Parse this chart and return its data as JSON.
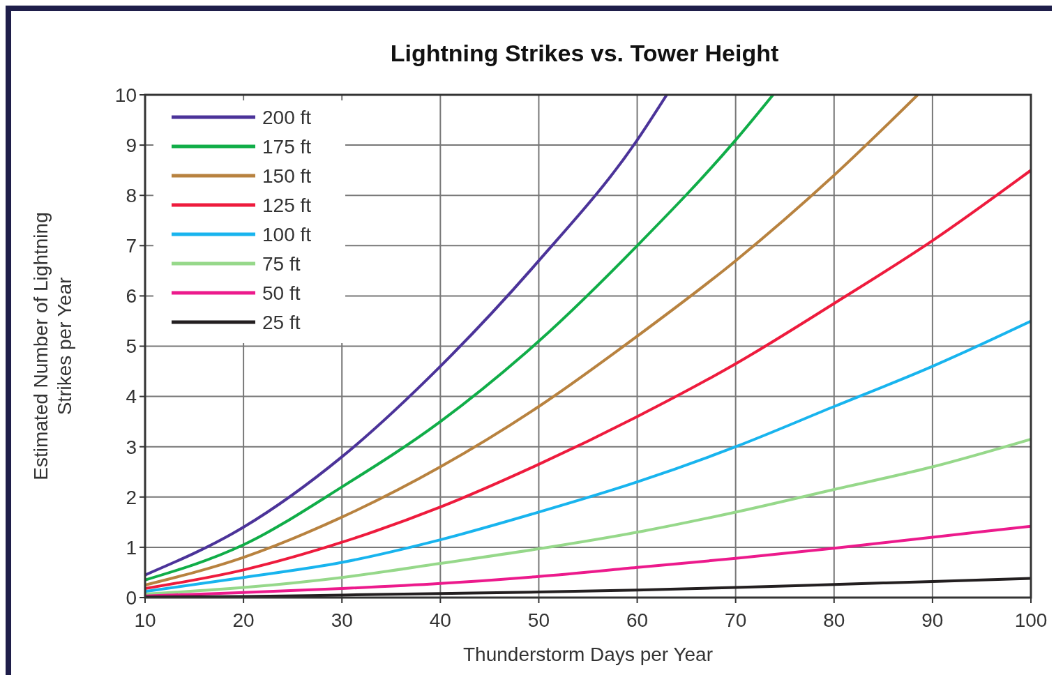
{
  "chart_data": {
    "type": "line",
    "title": "Lightning Strikes vs. Tower Height",
    "xlabel": "Thunderstorm Days per Year",
    "ylabel": "Estimated Number of Lightning Strikes per Year",
    "xlim": [
      10,
      100
    ],
    "xticks": [
      10,
      20,
      30,
      40,
      50,
      60,
      70,
      80,
      90,
      100
    ],
    "ylim": [
      0,
      10
    ],
    "yticks": [
      0,
      1,
      2,
      3,
      4,
      5,
      6,
      7,
      8,
      9,
      10
    ],
    "grid": true,
    "legend": "top left",
    "marker": "none",
    "line_style": "solid",
    "series": [
      {
        "name": "200 ft",
        "color": "#4b3399",
        "x": [
          10,
          20,
          30,
          40,
          50,
          60,
          63
        ],
        "values": [
          0.45,
          1.4,
          2.8,
          4.6,
          6.7,
          9.1,
          10
        ]
      },
      {
        "name": "175 ft",
        "color": "#10ad48",
        "x": [
          10,
          20,
          30,
          40,
          50,
          60,
          70,
          73.8
        ],
        "values": [
          0.35,
          1.05,
          2.2,
          3.5,
          5.1,
          7.0,
          9.1,
          10
        ]
      },
      {
        "name": "150 ft",
        "color": "#b8823f",
        "x": [
          10,
          20,
          30,
          40,
          50,
          60,
          70,
          80,
          88.5
        ],
        "values": [
          0.25,
          0.8,
          1.6,
          2.6,
          3.8,
          5.2,
          6.7,
          8.4,
          10
        ]
      },
      {
        "name": "125 ft",
        "color": "#ee1b3d",
        "x": [
          10,
          20,
          30,
          40,
          50,
          60,
          70,
          80,
          90,
          100
        ],
        "values": [
          0.18,
          0.55,
          1.1,
          1.8,
          2.65,
          3.6,
          4.65,
          5.85,
          7.1,
          8.5
        ]
      },
      {
        "name": "100 ft",
        "color": "#18b4ee",
        "x": [
          10,
          20,
          30,
          40,
          50,
          60,
          70,
          80,
          90,
          100
        ],
        "values": [
          0.12,
          0.4,
          0.7,
          1.15,
          1.7,
          2.3,
          3.0,
          3.8,
          4.6,
          5.5
        ]
      },
      {
        "name": "75 ft",
        "color": "#96d88a",
        "x": [
          10,
          20,
          30,
          40,
          50,
          60,
          70,
          80,
          90,
          100
        ],
        "values": [
          0.07,
          0.2,
          0.4,
          0.68,
          0.97,
          1.3,
          1.7,
          2.15,
          2.6,
          3.15
        ]
      },
      {
        "name": "50 ft",
        "color": "#ec1a8c",
        "x": [
          10,
          20,
          30,
          40,
          50,
          60,
          70,
          80,
          90,
          100
        ],
        "values": [
          0.03,
          0.1,
          0.18,
          0.28,
          0.42,
          0.6,
          0.78,
          0.98,
          1.2,
          1.42
        ]
      },
      {
        "name": "25 ft",
        "color": "#231f20",
        "x": [
          10,
          20,
          30,
          40,
          50,
          60,
          70,
          80,
          90,
          100
        ],
        "values": [
          0.01,
          0.02,
          0.05,
          0.08,
          0.11,
          0.15,
          0.2,
          0.26,
          0.32,
          0.38
        ]
      }
    ]
  }
}
